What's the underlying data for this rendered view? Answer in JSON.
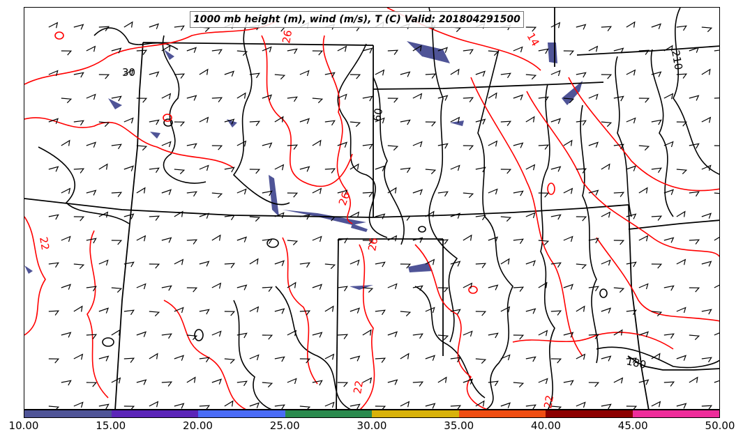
{
  "title": "1000 mb height (m), wind (m/s), T (C) Valid: 201804291500",
  "colorbar": {
    "ticks": [
      "10.00",
      "15.00",
      "20.00",
      "25.00",
      "30.00",
      "35.00",
      "40.00",
      "45.00",
      "50.00"
    ],
    "colors": [
      "#4f5497",
      "#5b25b8",
      "#4a6cf7",
      "#2a8a4e",
      "#d8b20a",
      "#f04e12",
      "#8c0000",
      "#ee2c9a"
    ]
  },
  "contour_labels": {
    "height": [
      "30",
      "60",
      "210",
      "180"
    ],
    "temperature": [
      "26",
      "14",
      "26",
      "26",
      "22",
      "22",
      "22"
    ]
  },
  "colors": {
    "height_contour": "#000000",
    "temp_contour": "#ff0000",
    "fill": "#4f5497"
  }
}
